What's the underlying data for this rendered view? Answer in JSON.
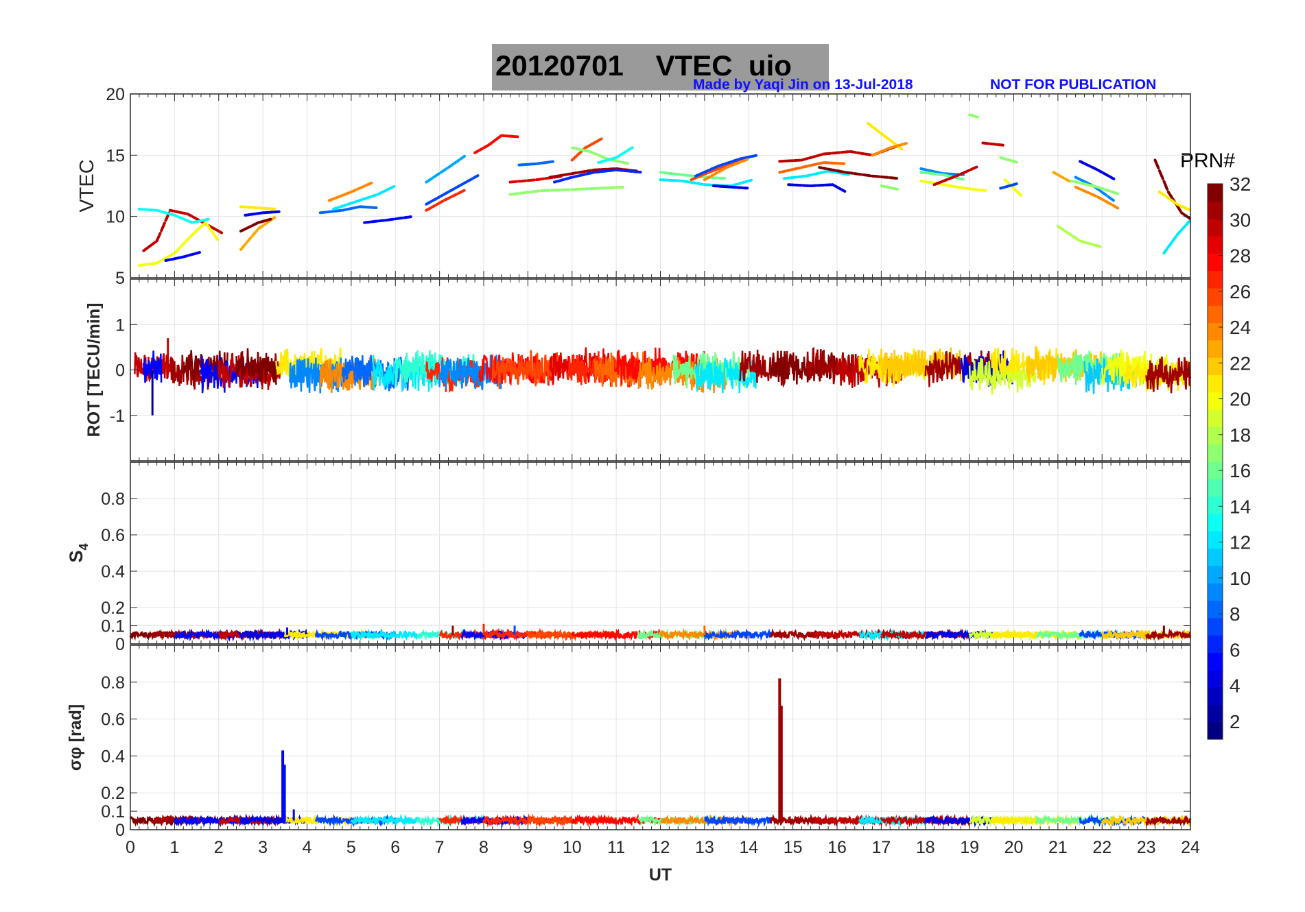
{
  "header": {
    "title_date": "20120701",
    "title_main": "VTEC",
    "title_station": "uio",
    "credit": "Made by Yaqi Jin on 13-Jul-2018",
    "notice": "NOT FOR PUBLICATION"
  },
  "colorbar": {
    "label": "PRN#",
    "ticks": [
      2,
      4,
      6,
      8,
      10,
      12,
      14,
      16,
      18,
      20,
      22,
      24,
      26,
      28,
      30,
      32
    ],
    "range": [
      1,
      32
    ],
    "colormap": "jet"
  },
  "chart_data": [
    {
      "type": "scatter",
      "panel": "vtec",
      "ylabel": "VTEC",
      "xlim": [
        0,
        24
      ],
      "ylim": [
        5,
        20
      ],
      "yticks": [
        5,
        10,
        15,
        20
      ],
      "grid": true,
      "series": [
        {
          "prn": 30,
          "x": [
            0.3,
            0.6,
            0.9,
            1.3,
            1.7,
            2.1
          ],
          "y": [
            7.2,
            8.0,
            10.5,
            10.2,
            9.4,
            8.6
          ]
        },
        {
          "prn": 20,
          "x": [
            0.2,
            0.6,
            1.0,
            1.4,
            1.7,
            2.0
          ],
          "y": [
            6.0,
            6.2,
            7.0,
            8.5,
            9.5,
            8.0
          ]
        },
        {
          "prn": 13,
          "x": [
            0.2,
            0.6,
            1.0,
            1.4,
            1.8
          ],
          "y": [
            10.6,
            10.5,
            10.1,
            9.5,
            9.8
          ]
        },
        {
          "prn": 5,
          "x": [
            0.8,
            1.2,
            1.6
          ],
          "y": [
            6.4,
            6.7,
            7.1
          ]
        },
        {
          "prn": 23,
          "x": [
            2.5,
            2.9,
            3.3
          ],
          "y": [
            7.3,
            9.0,
            10.0
          ]
        },
        {
          "prn": 32,
          "x": [
            2.5,
            2.9,
            3.2
          ],
          "y": [
            8.8,
            9.5,
            9.8
          ]
        },
        {
          "prn": 4,
          "x": [
            2.6,
            3.0,
            3.4
          ],
          "y": [
            10.1,
            10.3,
            10.4
          ]
        },
        {
          "prn": 21,
          "x": [
            2.5,
            2.9,
            3.3
          ],
          "y": [
            10.8,
            10.7,
            10.6
          ]
        },
        {
          "prn": 8,
          "x": [
            4.3,
            4.8,
            5.2,
            5.6
          ],
          "y": [
            10.3,
            10.5,
            10.8,
            10.7
          ]
        },
        {
          "prn": 24,
          "x": [
            4.5,
            5.0,
            5.5
          ],
          "y": [
            11.3,
            12.0,
            12.8
          ]
        },
        {
          "prn": 12,
          "x": [
            4.6,
            5.1,
            5.6,
            6.0
          ],
          "y": [
            10.6,
            11.2,
            11.8,
            12.5
          ]
        },
        {
          "prn": 5,
          "x": [
            5.3,
            5.8,
            6.4
          ],
          "y": [
            9.5,
            9.7,
            10.0
          ]
        },
        {
          "prn": 10,
          "x": [
            6.7,
            7.2,
            7.6
          ],
          "y": [
            12.8,
            14.0,
            15.0
          ]
        },
        {
          "prn": 7,
          "x": [
            6.7,
            7.1,
            7.5,
            7.9
          ],
          "y": [
            11.0,
            11.8,
            12.6,
            13.4
          ]
        },
        {
          "prn": 27,
          "x": [
            6.7,
            7.1,
            7.6
          ],
          "y": [
            10.5,
            11.3,
            12.2
          ]
        },
        {
          "prn": 28,
          "x": [
            7.8,
            8.1,
            8.4,
            8.8
          ],
          "y": [
            15.2,
            15.8,
            16.6,
            16.5
          ]
        },
        {
          "prn": 8,
          "x": [
            8.8,
            9.2,
            9.6
          ],
          "y": [
            14.2,
            14.3,
            14.5
          ]
        },
        {
          "prn": 29,
          "x": [
            8.6,
            9.2,
            9.8
          ],
          "y": [
            12.8,
            13.0,
            13.3
          ]
        },
        {
          "prn": 17,
          "x": [
            8.6,
            9.3,
            10.0,
            10.6,
            11.2
          ],
          "y": [
            11.8,
            12.1,
            12.2,
            12.3,
            12.4
          ]
        },
        {
          "prn": 26,
          "x": [
            10.0,
            10.3,
            10.7
          ],
          "y": [
            14.6,
            15.6,
            16.4
          ]
        },
        {
          "prn": 17,
          "x": [
            10.0,
            10.4,
            10.8,
            11.3
          ],
          "y": [
            15.6,
            15.3,
            14.7,
            14.3
          ]
        },
        {
          "prn": 13,
          "x": [
            10.6,
            11.0,
            11.4
          ],
          "y": [
            14.4,
            14.8,
            15.7
          ]
        },
        {
          "prn": 31,
          "x": [
            9.5,
            10.0,
            10.5,
            11.0,
            11.5
          ],
          "y": [
            13.2,
            13.5,
            13.8,
            13.9,
            13.7
          ]
        },
        {
          "prn": 6,
          "x": [
            9.6,
            10.0,
            10.5,
            11.0,
            11.6
          ],
          "y": [
            12.8,
            13.2,
            13.6,
            13.8,
            13.6
          ]
        },
        {
          "prn": 16,
          "x": [
            12.0,
            12.5,
            13.0,
            13.5
          ],
          "y": [
            13.6,
            13.4,
            13.2,
            13.1
          ]
        },
        {
          "prn": 12,
          "x": [
            12.0,
            12.5,
            13.0,
            13.6,
            14.1
          ],
          "y": [
            13.0,
            12.9,
            12.6,
            12.5,
            13.0
          ]
        },
        {
          "prn": 4,
          "x": [
            13.2,
            13.6,
            14.0
          ],
          "y": [
            12.5,
            12.4,
            12.3
          ]
        },
        {
          "prn": 26,
          "x": [
            12.7,
            13.1,
            13.6,
            14.0
          ],
          "y": [
            13.0,
            13.6,
            14.3,
            14.8
          ]
        },
        {
          "prn": 7,
          "x": [
            12.8,
            13.3,
            13.8,
            14.2
          ],
          "y": [
            13.3,
            14.1,
            14.7,
            15.0
          ]
        },
        {
          "prn": 24,
          "x": [
            13.0,
            13.5,
            14.0
          ],
          "y": [
            13.0,
            14.0,
            14.7
          ]
        },
        {
          "prn": 30,
          "x": [
            14.7,
            15.2,
            15.7,
            16.3,
            16.8,
            17.4
          ],
          "y": [
            14.5,
            14.6,
            15.1,
            15.3,
            15.0,
            15.8
          ]
        },
        {
          "prn": 25,
          "x": [
            14.7,
            15.2,
            15.7,
            16.2
          ],
          "y": [
            13.6,
            14.0,
            14.4,
            14.3
          ]
        },
        {
          "prn": 21,
          "x": [
            16.7,
            17.1,
            17.5
          ],
          "y": [
            17.6,
            16.5,
            15.4
          ]
        },
        {
          "prn": 24,
          "x": [
            16.8,
            17.2,
            17.6
          ],
          "y": [
            15.0,
            15.6,
            16.0
          ]
        },
        {
          "prn": 12,
          "x": [
            14.8,
            15.3,
            15.8,
            16.3
          ],
          "y": [
            13.1,
            13.3,
            13.7,
            13.4
          ]
        },
        {
          "prn": 32,
          "x": [
            15.6,
            16.2,
            16.8,
            17.4
          ],
          "y": [
            14.0,
            13.6,
            13.3,
            13.1
          ]
        },
        {
          "prn": 4,
          "x": [
            14.9,
            15.4,
            15.9,
            16.2
          ],
          "y": [
            12.6,
            12.5,
            12.6,
            12.0
          ]
        },
        {
          "prn": 17,
          "x": [
            17.0,
            17.4
          ],
          "y": [
            12.5,
            12.2
          ]
        },
        {
          "prn": 9,
          "x": [
            17.9,
            18.4,
            18.9
          ],
          "y": [
            13.9,
            13.5,
            13.4
          ]
        },
        {
          "prn": 20,
          "x": [
            17.9,
            18.4,
            18.9,
            19.4
          ],
          "y": [
            12.9,
            12.6,
            12.3,
            12.1
          ]
        },
        {
          "prn": 16,
          "x": [
            17.9,
            18.4,
            18.9
          ],
          "y": [
            13.6,
            13.4,
            13.0
          ]
        },
        {
          "prn": 30,
          "x": [
            18.2,
            18.7,
            19.2
          ],
          "y": [
            12.6,
            13.3,
            14.1
          ]
        },
        {
          "prn": 17,
          "x": [
            19.0,
            19.2
          ],
          "y": [
            18.3,
            18.1
          ]
        },
        {
          "prn": 30,
          "x": [
            19.3,
            19.8
          ],
          "y": [
            16.0,
            15.8
          ]
        },
        {
          "prn": 17,
          "x": [
            19.7,
            20.1
          ],
          "y": [
            14.8,
            14.4
          ]
        },
        {
          "prn": 20,
          "x": [
            19.8,
            20.2
          ],
          "y": [
            13.0,
            11.6
          ]
        },
        {
          "prn": 7,
          "x": [
            19.7,
            20.1
          ],
          "y": [
            12.3,
            12.7
          ]
        },
        {
          "prn": 23,
          "x": [
            20.9,
            21.3
          ],
          "y": [
            13.6,
            12.8
          ]
        },
        {
          "prn": 18,
          "x": [
            21.0,
            21.5,
            22.0
          ],
          "y": [
            9.2,
            8.0,
            7.5
          ]
        },
        {
          "prn": 4,
          "x": [
            21.5,
            21.9,
            22.3
          ],
          "y": [
            14.5,
            13.8,
            13.0
          ]
        },
        {
          "prn": 9,
          "x": [
            21.4,
            21.8,
            22.3
          ],
          "y": [
            13.2,
            12.5,
            11.2
          ]
        },
        {
          "prn": 24,
          "x": [
            21.4,
            21.9,
            22.4
          ],
          "y": [
            12.4,
            11.6,
            10.6
          ]
        },
        {
          "prn": 17,
          "x": [
            21.3,
            21.9,
            22.4
          ],
          "y": [
            12.9,
            12.4,
            11.8
          ]
        },
        {
          "prn": 32,
          "x": [
            23.2,
            23.5,
            23.8,
            24.0
          ],
          "y": [
            14.6,
            12.0,
            10.3,
            9.8
          ]
        },
        {
          "prn": 12,
          "x": [
            23.4,
            23.7,
            24.0
          ],
          "y": [
            7.0,
            8.5,
            9.7
          ]
        },
        {
          "prn": 21,
          "x": [
            23.3,
            23.7,
            24.0
          ],
          "y": [
            12.0,
            11.0,
            10.5
          ]
        }
      ]
    },
    {
      "type": "line",
      "panel": "rot",
      "ylabel": "ROT [TECU/min]",
      "xlim": [
        0,
        24
      ],
      "ylim": [
        -2,
        2
      ],
      "yticks": [
        -1,
        0,
        1
      ],
      "grid": true,
      "description_ranges": {
        "typical_amplitude": 0.3,
        "min_spike": -1.0,
        "max_spike": 0.7
      }
    },
    {
      "type": "line",
      "panel": "s4",
      "ylabel": "S4",
      "xlim": [
        0,
        24
      ],
      "ylim": [
        0,
        1
      ],
      "yticks": [
        0,
        0.1,
        0.2,
        0.4,
        0.6,
        0.8
      ],
      "grid": true,
      "baseline": 0.05,
      "max_value": 0.12
    },
    {
      "type": "line",
      "panel": "sigma_phi",
      "ylabel": "σφ [rad]",
      "xlabel": "UT",
      "xlim": [
        0,
        24
      ],
      "ylim": [
        0,
        1
      ],
      "xticks": [
        0,
        1,
        2,
        3,
        4,
        5,
        6,
        7,
        8,
        9,
        10,
        11,
        12,
        13,
        14,
        15,
        16,
        17,
        18,
        19,
        20,
        21,
        22,
        23,
        24
      ],
      "yticks": [
        0,
        0.1,
        0.2,
        0.4,
        0.6,
        0.8
      ],
      "grid": true,
      "baseline": 0.05,
      "spikes": [
        {
          "prn": 5,
          "x": 3.45,
          "y": 0.43
        },
        {
          "prn": 31,
          "x": 14.7,
          "y": 0.82
        }
      ]
    }
  ]
}
